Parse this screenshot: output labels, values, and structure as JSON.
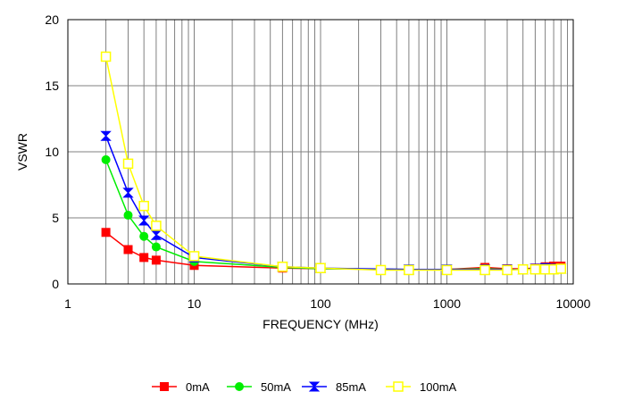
{
  "chart_data": {
    "type": "line",
    "xlabel": "FREQUENCY (MHz)",
    "ylabel": "VSWR",
    "xscale": "log",
    "xlim": [
      1,
      10000
    ],
    "ylim": [
      0,
      20
    ],
    "grid": true,
    "legend_position": "bottom",
    "x_tick_labels": [
      "1",
      "10",
      "100",
      "1000",
      "10000"
    ],
    "y_tick_labels": [
      "0",
      "5",
      "10",
      "15",
      "20"
    ],
    "series": [
      {
        "name": "0mA",
        "color": "#ff0000",
        "marker": "filled-square",
        "points": [
          [
            2,
            3.9
          ],
          [
            3,
            2.6
          ],
          [
            4,
            2.0
          ],
          [
            5,
            1.8
          ],
          [
            10,
            1.4
          ],
          [
            50,
            1.2
          ],
          [
            100,
            1.15
          ],
          [
            500,
            1.1
          ],
          [
            1000,
            1.1
          ],
          [
            2000,
            1.25
          ],
          [
            3000,
            1.15
          ],
          [
            4000,
            1.15
          ],
          [
            5000,
            1.2
          ],
          [
            6000,
            1.3
          ],
          [
            7000,
            1.35
          ],
          [
            8000,
            1.35
          ]
        ]
      },
      {
        "name": "50mA",
        "color": "#00ee00",
        "marker": "filled-circle",
        "points": [
          [
            2,
            9.4
          ],
          [
            3,
            5.2
          ],
          [
            4,
            3.6
          ],
          [
            5,
            2.8
          ],
          [
            10,
            1.7
          ],
          [
            50,
            1.25
          ],
          [
            100,
            1.15
          ],
          [
            500,
            1.1
          ],
          [
            1000,
            1.1
          ],
          [
            2000,
            1.15
          ],
          [
            3000,
            1.1
          ],
          [
            4000,
            1.1
          ],
          [
            5000,
            1.15
          ],
          [
            6000,
            1.2
          ],
          [
            7000,
            1.2
          ],
          [
            8000,
            1.2
          ]
        ]
      },
      {
        "name": "85mA",
        "color": "#0000ff",
        "marker": "bowtie",
        "points": [
          [
            2,
            11.2
          ],
          [
            3,
            6.9
          ],
          [
            4,
            4.8
          ],
          [
            5,
            3.7
          ],
          [
            10,
            2.0
          ],
          [
            50,
            1.3
          ],
          [
            100,
            1.2
          ],
          [
            500,
            1.1
          ],
          [
            1000,
            1.1
          ],
          [
            2000,
            1.1
          ],
          [
            3000,
            1.1
          ],
          [
            4000,
            1.1
          ],
          [
            5000,
            1.15
          ],
          [
            6000,
            1.2
          ],
          [
            7000,
            1.15
          ],
          [
            8000,
            1.15
          ]
        ]
      },
      {
        "name": "100mA",
        "color": "#ffff00",
        "marker": "open-square",
        "points": [
          [
            2,
            17.2
          ],
          [
            3,
            9.1
          ],
          [
            4,
            5.9
          ],
          [
            5,
            4.4
          ],
          [
            10,
            2.1
          ],
          [
            50,
            1.3
          ],
          [
            100,
            1.2
          ],
          [
            300,
            1.05
          ],
          [
            500,
            1.05
          ],
          [
            1000,
            1.05
          ],
          [
            2000,
            1.05
          ],
          [
            3000,
            1.05
          ],
          [
            4000,
            1.1
          ],
          [
            5000,
            1.1
          ],
          [
            6000,
            1.1
          ],
          [
            7000,
            1.1
          ],
          [
            8000,
            1.15
          ]
        ]
      }
    ]
  }
}
